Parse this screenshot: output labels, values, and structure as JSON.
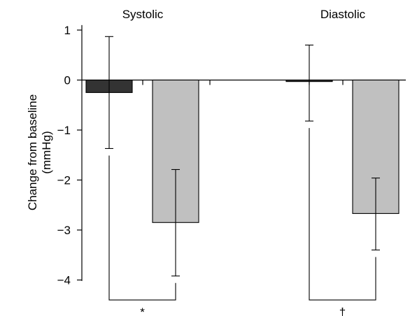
{
  "chart_data": {
    "type": "bar",
    "title": "",
    "xlabel": "",
    "ylabel": [
      "Change from baseline",
      "(mmHg)"
    ],
    "ylim": [
      -4.4,
      1.1
    ],
    "yticks": [
      1,
      0,
      -1,
      -2,
      -3,
      -4
    ],
    "ytick_labels": [
      "1",
      "0",
      "−1",
      "−2",
      "−3",
      "−4"
    ],
    "grid": false,
    "legend": "none",
    "categories": [
      "Systolic",
      "Diastolic"
    ],
    "series": [
      {
        "color": "#333333",
        "values": [
          -0.25,
          -0.03
        ],
        "error_low": [
          -1.37,
          -0.82
        ],
        "error_high": [
          0.87,
          0.7
        ]
      },
      {
        "color": "#c0c0c0",
        "values": [
          -2.85,
          -2.67
        ],
        "error_low": [
          -3.92,
          -3.4
        ],
        "error_high": [
          -1.79,
          -1.96
        ]
      }
    ],
    "significance": [
      {
        "category": "Systolic",
        "label": "*"
      },
      {
        "category": "Diastolic",
        "label": "†"
      }
    ]
  }
}
